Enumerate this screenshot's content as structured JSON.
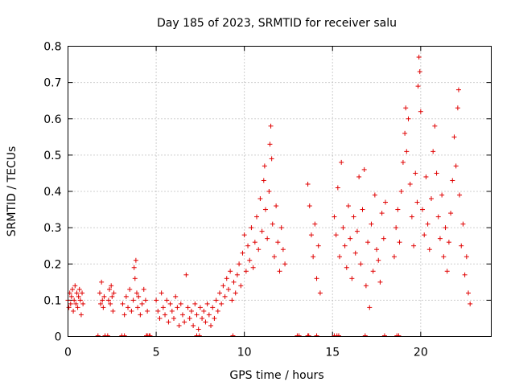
{
  "chart_data": {
    "type": "scatter",
    "title": "Day 185 of 2023, SRMTID for receiver salu",
    "xlabel": "GPS time / hours",
    "ylabel": "SRMTID / TECUs",
    "xlim": [
      0,
      24
    ],
    "ylim": [
      0,
      0.8
    ],
    "x_ticks": [
      0,
      5,
      10,
      15,
      20
    ],
    "x_tick_labels": [
      "0",
      "5",
      "10",
      "15",
      "20"
    ],
    "y_ticks": [
      0,
      0.1,
      0.2,
      0.3,
      0.4,
      0.5,
      0.6,
      0.7,
      0.8
    ],
    "y_tick_labels": [
      "0",
      "0.1",
      "0.2",
      "0.3",
      "0.4",
      "0.5",
      "0.6",
      "0.7",
      "0.8"
    ],
    "grid": true,
    "series": [
      {
        "name": "SRMTID",
        "color": "#e00000",
        "marker": "plus",
        "points": [
          [
            0.0,
            0.1
          ],
          [
            0.05,
            0.08
          ],
          [
            0.1,
            0.12
          ],
          [
            0.15,
            0.09
          ],
          [
            0.2,
            0.11
          ],
          [
            0.25,
            0.13
          ],
          [
            0.3,
            0.07
          ],
          [
            0.35,
            0.1
          ],
          [
            0.4,
            0.14
          ],
          [
            0.45,
            0.09
          ],
          [
            0.5,
            0.12
          ],
          [
            0.55,
            0.08
          ],
          [
            0.6,
            0.11
          ],
          [
            0.65,
            0.13
          ],
          [
            0.7,
            0.1
          ],
          [
            0.75,
            0.06
          ],
          [
            0.8,
            0.12
          ],
          [
            0.85,
            0.09
          ],
          [
            1.8,
            0.12
          ],
          [
            1.85,
            0.09
          ],
          [
            1.9,
            0.15
          ],
          [
            1.95,
            0.1
          ],
          [
            2.0,
            0.08
          ],
          [
            2.05,
            0.11
          ],
          [
            2.3,
            0.1
          ],
          [
            2.35,
            0.13
          ],
          [
            2.4,
            0.09
          ],
          [
            2.45,
            0.14
          ],
          [
            2.5,
            0.11
          ],
          [
            2.55,
            0.07
          ],
          [
            2.6,
            0.12
          ],
          [
            3.1,
            0.09
          ],
          [
            3.2,
            0.06
          ],
          [
            3.3,
            0.11
          ],
          [
            3.4,
            0.08
          ],
          [
            3.5,
            0.13
          ],
          [
            3.6,
            0.07
          ],
          [
            3.7,
            0.1
          ],
          [
            3.75,
            0.19
          ],
          [
            3.8,
            0.16
          ],
          [
            3.85,
            0.21
          ],
          [
            3.9,
            0.12
          ],
          [
            3.95,
            0.08
          ],
          [
            4.0,
            0.11
          ],
          [
            4.1,
            0.06
          ],
          [
            4.2,
            0.09
          ],
          [
            4.3,
            0.13
          ],
          [
            4.4,
            0.1
          ],
          [
            4.5,
            0.07
          ],
          [
            5.0,
            0.1
          ],
          [
            5.1,
            0.07
          ],
          [
            5.2,
            0.05
          ],
          [
            5.3,
            0.12
          ],
          [
            5.4,
            0.08
          ],
          [
            5.5,
            0.06
          ],
          [
            5.6,
            0.1
          ],
          [
            5.7,
            0.04
          ],
          [
            5.8,
            0.09
          ],
          [
            5.9,
            0.07
          ],
          [
            6.0,
            0.05
          ],
          [
            6.1,
            0.11
          ],
          [
            6.2,
            0.08
          ],
          [
            6.3,
            0.03
          ],
          [
            6.4,
            0.09
          ],
          [
            6.5,
            0.06
          ],
          [
            6.6,
            0.04
          ],
          [
            6.7,
            0.17
          ],
          [
            6.8,
            0.08
          ],
          [
            6.9,
            0.05
          ],
          [
            7.0,
            0.07
          ],
          [
            7.1,
            0.03
          ],
          [
            7.2,
            0.09
          ],
          [
            7.3,
            0.06
          ],
          [
            7.4,
            0.02
          ],
          [
            7.5,
            0.08
          ],
          [
            7.6,
            0.05
          ],
          [
            7.7,
            0.07
          ],
          [
            7.8,
            0.04
          ],
          [
            7.9,
            0.09
          ],
          [
            8.0,
            0.06
          ],
          [
            8.1,
            0.03
          ],
          [
            8.2,
            0.08
          ],
          [
            8.3,
            0.05
          ],
          [
            8.4,
            0.1
          ],
          [
            8.5,
            0.07
          ],
          [
            8.6,
            0.12
          ],
          [
            8.7,
            0.09
          ],
          [
            8.8,
            0.14
          ],
          [
            8.9,
            0.11
          ],
          [
            9.0,
            0.16
          ],
          [
            9.1,
            0.13
          ],
          [
            9.2,
            0.18
          ],
          [
            9.3,
            0.1
          ],
          [
            9.4,
            0.15
          ],
          [
            9.5,
            0.12
          ],
          [
            9.6,
            0.17
          ],
          [
            9.7,
            0.2
          ],
          [
            9.8,
            0.14
          ],
          [
            9.9,
            0.23
          ],
          [
            10.0,
            0.28
          ],
          [
            10.1,
            0.18
          ],
          [
            10.2,
            0.25
          ],
          [
            10.3,
            0.21
          ],
          [
            10.4,
            0.3
          ],
          [
            10.5,
            0.19
          ],
          [
            10.6,
            0.26
          ],
          [
            10.7,
            0.33
          ],
          [
            10.8,
            0.24
          ],
          [
            10.9,
            0.38
          ],
          [
            11.0,
            0.29
          ],
          [
            11.1,
            0.43
          ],
          [
            11.15,
            0.47
          ],
          [
            11.2,
            0.35
          ],
          [
            11.3,
            0.27
          ],
          [
            11.4,
            0.4
          ],
          [
            11.45,
            0.53
          ],
          [
            11.5,
            0.58
          ],
          [
            11.55,
            0.49
          ],
          [
            11.6,
            0.31
          ],
          [
            11.7,
            0.22
          ],
          [
            11.8,
            0.36
          ],
          [
            11.9,
            0.26
          ],
          [
            12.0,
            0.18
          ],
          [
            12.1,
            0.3
          ],
          [
            12.2,
            0.24
          ],
          [
            12.3,
            0.2
          ],
          [
            13.6,
            0.42
          ],
          [
            13.7,
            0.36
          ],
          [
            13.8,
            0.28
          ],
          [
            13.9,
            0.22
          ],
          [
            14.0,
            0.31
          ],
          [
            14.1,
            0.16
          ],
          [
            14.2,
            0.25
          ],
          [
            14.3,
            0.12
          ],
          [
            15.1,
            0.33
          ],
          [
            15.2,
            0.28
          ],
          [
            15.3,
            0.41
          ],
          [
            15.4,
            0.22
          ],
          [
            15.5,
            0.48
          ],
          [
            15.6,
            0.3
          ],
          [
            15.7,
            0.25
          ],
          [
            15.8,
            0.19
          ],
          [
            15.9,
            0.36
          ],
          [
            16.0,
            0.27
          ],
          [
            16.1,
            0.16
          ],
          [
            16.2,
            0.33
          ],
          [
            16.3,
            0.23
          ],
          [
            16.4,
            0.29
          ],
          [
            16.5,
            0.44
          ],
          [
            16.6,
            0.2
          ],
          [
            16.7,
            0.35
          ],
          [
            16.8,
            0.46
          ],
          [
            16.9,
            0.14
          ],
          [
            17.0,
            0.26
          ],
          [
            17.1,
            0.08
          ],
          [
            17.2,
            0.31
          ],
          [
            17.3,
            0.18
          ],
          [
            17.4,
            0.39
          ],
          [
            17.5,
            0.24
          ],
          [
            17.6,
            0.21
          ],
          [
            17.7,
            0.15
          ],
          [
            17.8,
            0.34
          ],
          [
            17.9,
            0.27
          ],
          [
            18.0,
            0.37
          ],
          [
            18.5,
            0.22
          ],
          [
            18.6,
            0.3
          ],
          [
            18.7,
            0.35
          ],
          [
            18.8,
            0.26
          ],
          [
            18.9,
            0.4
          ],
          [
            19.0,
            0.48
          ],
          [
            19.1,
            0.56
          ],
          [
            19.15,
            0.63
          ],
          [
            19.2,
            0.51
          ],
          [
            19.3,
            0.6
          ],
          [
            19.4,
            0.42
          ],
          [
            19.5,
            0.33
          ],
          [
            19.6,
            0.25
          ],
          [
            19.7,
            0.45
          ],
          [
            19.8,
            0.37
          ],
          [
            19.85,
            0.69
          ],
          [
            19.9,
            0.77
          ],
          [
            19.95,
            0.73
          ],
          [
            20.0,
            0.62
          ],
          [
            20.1,
            0.35
          ],
          [
            20.2,
            0.28
          ],
          [
            20.3,
            0.44
          ],
          [
            20.4,
            0.31
          ],
          [
            20.5,
            0.24
          ],
          [
            20.6,
            0.38
          ],
          [
            20.7,
            0.51
          ],
          [
            20.8,
            0.58
          ],
          [
            20.9,
            0.45
          ],
          [
            21.0,
            0.33
          ],
          [
            21.1,
            0.27
          ],
          [
            21.2,
            0.39
          ],
          [
            21.3,
            0.22
          ],
          [
            21.4,
            0.3
          ],
          [
            21.5,
            0.18
          ],
          [
            21.6,
            0.26
          ],
          [
            21.7,
            0.34
          ],
          [
            21.8,
            0.43
          ],
          [
            21.9,
            0.55
          ],
          [
            22.0,
            0.47
          ],
          [
            22.1,
            0.63
          ],
          [
            22.15,
            0.68
          ],
          [
            22.2,
            0.39
          ],
          [
            22.3,
            0.25
          ],
          [
            22.4,
            0.31
          ],
          [
            22.5,
            0.17
          ],
          [
            22.6,
            0.22
          ],
          [
            22.7,
            0.12
          ],
          [
            22.8,
            0.09
          ]
        ]
      }
    ],
    "zero_markers": [
      1.7,
      2.1,
      2.25,
      3.05,
      3.2,
      4.45,
      4.5,
      4.6,
      4.65,
      7.3,
      7.45,
      9.35,
      13.0,
      13.1,
      13.6,
      13.65,
      14.1,
      15.1,
      15.25,
      15.35,
      16.85,
      17.95,
      18.65,
      18.75
    ]
  }
}
